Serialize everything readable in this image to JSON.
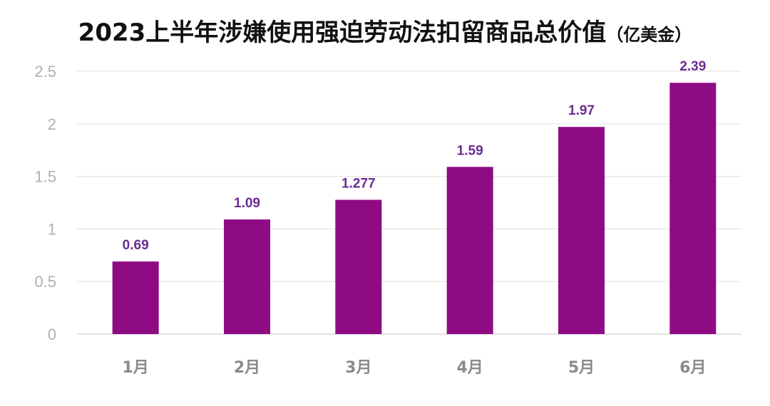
{
  "chart_data": {
    "type": "bar",
    "title": "2023上半年涉嫌使用强迫劳动法扣留商品总价值",
    "title_unit": "（亿美金）",
    "categories": [
      "1月",
      "2月",
      "3月",
      "4月",
      "5月",
      "6月"
    ],
    "values": [
      0.69,
      1.09,
      1.277,
      1.59,
      1.97,
      2.39
    ],
    "data_labels": [
      "0.69",
      "1.09",
      "1.277",
      "1.59",
      "1.97",
      "2.39"
    ],
    "y_ticks": [
      "0",
      "0.5",
      "1",
      "1.5",
      "2",
      "2.5"
    ],
    "ylim": [
      0,
      2.5
    ],
    "grid": true,
    "bar_color": "#8e0b83",
    "label_color": "#6a2c91",
    "xlabel": "",
    "ylabel": ""
  }
}
